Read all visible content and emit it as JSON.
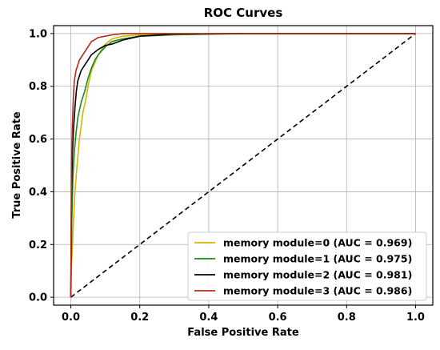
{
  "chart_data": {
    "type": "line",
    "title": "ROC Curves",
    "xlabel": "False Positive Rate",
    "ylabel": "True Positive Rate",
    "xlim": [
      -0.05,
      1.05
    ],
    "ylim": [
      -0.03,
      1.03
    ],
    "xticks": [
      "0.0",
      "0.2",
      "0.4",
      "0.6",
      "0.8",
      "1.0"
    ],
    "yticks": [
      "0.0",
      "0.2",
      "0.4",
      "0.6",
      "0.8",
      "1.0"
    ],
    "grid": true,
    "legend_position": "lower-right",
    "series": [
      {
        "name": "memory module=0 (AUC = 0.969)",
        "color": "#d4b500",
        "x": [
          0,
          0.002,
          0.005,
          0.008,
          0.012,
          0.018,
          0.025,
          0.03,
          0.035,
          0.04,
          0.045,
          0.05,
          0.06,
          0.07,
          0.08,
          0.1,
          0.12,
          0.15,
          0.2,
          0.3,
          0.5,
          0.7,
          1.0
        ],
        "y": [
          0,
          0.12,
          0.2,
          0.3,
          0.4,
          0.5,
          0.6,
          0.65,
          0.7,
          0.73,
          0.76,
          0.8,
          0.86,
          0.89,
          0.92,
          0.96,
          0.98,
          0.99,
          0.995,
          0.998,
          1.0,
          1.0,
          1.0
        ]
      },
      {
        "name": "memory module=1 (AUC = 0.975)",
        "color": "#1b8a1b",
        "x": [
          0,
          0.003,
          0.006,
          0.01,
          0.015,
          0.02,
          0.03,
          0.04,
          0.05,
          0.06,
          0.07,
          0.08,
          0.1,
          0.12,
          0.15,
          0.2,
          0.3,
          0.5,
          1.0
        ],
        "y": [
          0,
          0.3,
          0.45,
          0.55,
          0.62,
          0.68,
          0.74,
          0.78,
          0.83,
          0.87,
          0.9,
          0.92,
          0.95,
          0.97,
          0.98,
          0.99,
          0.995,
          1.0,
          1.0
        ]
      },
      {
        "name": "memory module=2 (AUC = 0.981)",
        "color": "#000000",
        "x": [
          0,
          0.002,
          0.005,
          0.008,
          0.012,
          0.016,
          0.02,
          0.025,
          0.03,
          0.04,
          0.05,
          0.06,
          0.08,
          0.1,
          0.12,
          0.15,
          0.2,
          0.3,
          0.5,
          1.0
        ],
        "y": [
          0,
          0.4,
          0.55,
          0.64,
          0.72,
          0.78,
          0.82,
          0.84,
          0.86,
          0.88,
          0.9,
          0.92,
          0.94,
          0.955,
          0.96,
          0.975,
          0.99,
          0.998,
          1.0,
          1.0
        ]
      },
      {
        "name": "memory module=3 (AUC = 0.986)",
        "color": "#b22a1f",
        "x": [
          0,
          0.002,
          0.004,
          0.007,
          0.01,
          0.015,
          0.02,
          0.025,
          0.03,
          0.04,
          0.05,
          0.06,
          0.08,
          0.1,
          0.12,
          0.15,
          0.2,
          0.3,
          1.0
        ],
        "y": [
          0,
          0.5,
          0.64,
          0.75,
          0.82,
          0.86,
          0.88,
          0.9,
          0.91,
          0.93,
          0.95,
          0.97,
          0.985,
          0.99,
          0.995,
          1.0,
          1.0,
          1.0,
          1.0
        ]
      }
    ],
    "reference_line": {
      "style": "dashed",
      "color": "#000000",
      "x": [
        0,
        1
      ],
      "y": [
        0,
        1
      ]
    }
  }
}
